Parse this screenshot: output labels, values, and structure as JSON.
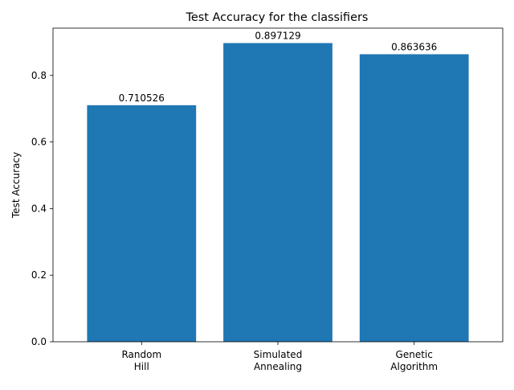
{
  "chart_data": {
    "type": "bar",
    "title": "Test Accuracy for the classifiers",
    "xlabel": "",
    "ylabel": "Test Accuracy",
    "categories": [
      [
        "Random",
        "Hill"
      ],
      [
        "Simulated",
        "Annealing"
      ],
      [
        "Genetic",
        "Algorithm"
      ]
    ],
    "values": [
      0.710526,
      0.897129,
      0.863636
    ],
    "value_labels": [
      "0.710526",
      "0.897129",
      "0.863636"
    ],
    "ylim": [
      0,
      0.942
    ],
    "yticks": [
      0.0,
      0.2,
      0.4,
      0.6,
      0.8
    ],
    "ytick_labels": [
      "0.0",
      "0.2",
      "0.4",
      "0.6",
      "0.8"
    ],
    "bar_color": "#1f77b4",
    "grid": false,
    "legend": "none"
  }
}
